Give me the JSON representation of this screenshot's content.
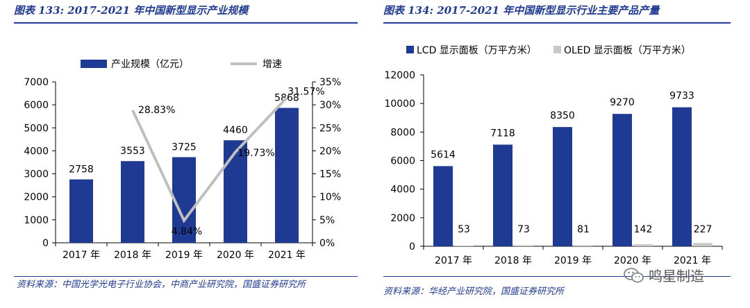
{
  "left": {
    "title": "图表 133: 2017-2021 年中国新型显示产业规模",
    "source": "资料来源：中国光学光电子行业协会，中商产业研究院，国盛证券研究所"
  },
  "right": {
    "title": "图表 134: 2017-2021 年中国新型显示行业主要产品产量",
    "source": "资料来源：华经产业研究院，国盛证券研究所"
  },
  "watermark": "鸣星制造",
  "colors": {
    "bar_blue": "#1f3a93",
    "line_gray": "#bfbfbf",
    "oled_gray": "#c8c8c8"
  },
  "chart_data": [
    {
      "type": "bar",
      "categories": [
        "2017 年",
        "2018 年",
        "2019 年",
        "2020 年",
        "2021 年"
      ],
      "series": [
        {
          "name": "产业规模（亿元）",
          "type": "bar",
          "axis": "left",
          "values": [
            2758,
            3553,
            3725,
            4460,
            5868
          ],
          "labels": [
            "2758",
            "3553",
            "3725",
            "4460",
            "5868"
          ]
        },
        {
          "name": "增速",
          "type": "line",
          "axis": "right",
          "values": [
            null,
            28.83,
            4.84,
            19.73,
            31.57
          ],
          "labels": [
            "",
            "28.83%",
            "4.84%",
            "19.73%",
            "31.57%"
          ]
        }
      ],
      "left_axis": {
        "min": 0,
        "max": 7000,
        "ticks": [
          "0",
          "1000",
          "2000",
          "3000",
          "4000",
          "5000",
          "6000",
          "7000"
        ]
      },
      "right_axis": {
        "min": 0,
        "max": 35,
        "ticks": [
          "0%",
          "5%",
          "10%",
          "15%",
          "20%",
          "25%",
          "30%",
          "35%"
        ]
      }
    },
    {
      "type": "bar",
      "categories": [
        "2017 年",
        "2018 年",
        "2019 年",
        "2020 年",
        "2021 年"
      ],
      "series": [
        {
          "name": "LCD 显示面板（万平方米）",
          "values": [
            5614,
            7118,
            8350,
            9270,
            9733
          ],
          "labels": [
            "5614",
            "7118",
            "8350",
            "9270",
            "9733"
          ]
        },
        {
          "name": "OLED 显示面板（万平方米）",
          "values": [
            53,
            73,
            81,
            142,
            227
          ],
          "labels": [
            "53",
            "73",
            "81",
            "142",
            "227"
          ]
        }
      ],
      "y_axis": {
        "min": 0,
        "max": 12000,
        "ticks": [
          "0",
          "2000",
          "4000",
          "6000",
          "8000",
          "10000",
          "12000"
        ]
      }
    }
  ]
}
